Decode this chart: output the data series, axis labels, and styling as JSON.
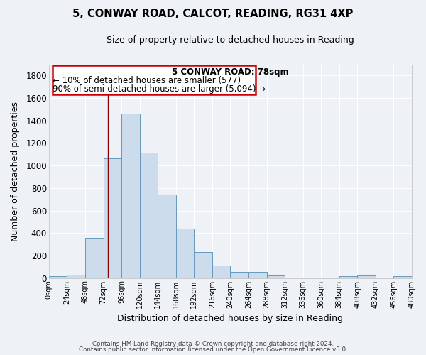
{
  "title": "5, CONWAY ROAD, CALCOT, READING, RG31 4XP",
  "subtitle": "Size of property relative to detached houses in Reading",
  "xlabel": "Distribution of detached houses by size in Reading",
  "ylabel": "Number of detached properties",
  "bar_color": "#ccdcec",
  "bar_edge_color": "#6699bb",
  "background_color": "#eef2f7",
  "grid_color": "#ffffff",
  "bin_edges": [
    0,
    24,
    48,
    72,
    96,
    120,
    144,
    168,
    192,
    216,
    240,
    264,
    288,
    312,
    336,
    360,
    384,
    408,
    432,
    456,
    480
  ],
  "bar_heights": [
    15,
    30,
    360,
    1065,
    1460,
    1115,
    745,
    440,
    230,
    110,
    55,
    55,
    20,
    0,
    0,
    0,
    15,
    20,
    0,
    15
  ],
  "red_line_x": 78,
  "annotation_title": "5 CONWAY ROAD: 78sqm",
  "annotation_line1": "← 10% of detached houses are smaller (577)",
  "annotation_line2": "90% of semi-detached houses are larger (5,094) →",
  "annotation_box_color": "#ffffff",
  "annotation_box_edge": "#cc0000",
  "tick_labels": [
    "0sqm",
    "24sqm",
    "48sqm",
    "72sqm",
    "96sqm",
    "120sqm",
    "144sqm",
    "168sqm",
    "192sqm",
    "216sqm",
    "240sqm",
    "264sqm",
    "288sqm",
    "312sqm",
    "336sqm",
    "360sqm",
    "384sqm",
    "408sqm",
    "432sqm",
    "456sqm",
    "480sqm"
  ],
  "ylim": [
    0,
    1900
  ],
  "yticks": [
    0,
    200,
    400,
    600,
    800,
    1000,
    1200,
    1400,
    1600,
    1800
  ],
  "footer1": "Contains HM Land Registry data © Crown copyright and database right 2024.",
  "footer2": "Contains public sector information licensed under the Open Government Licence v3.0."
}
